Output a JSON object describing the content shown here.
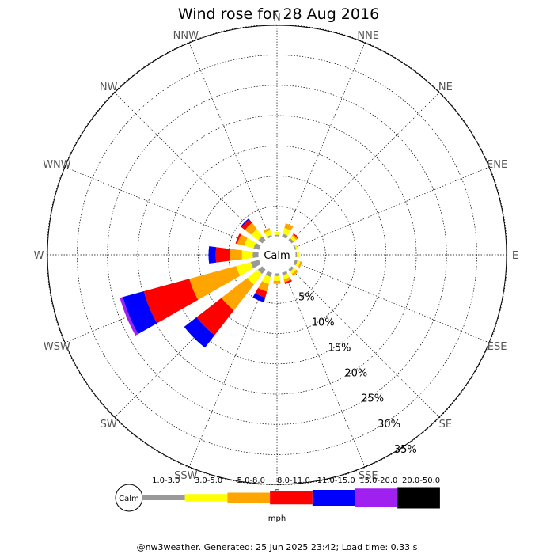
{
  "chart_data": {
    "type": "wind-rose",
    "title": "Wind rose for 28 Aug 2016",
    "directions": [
      "N",
      "NNE",
      "NE",
      "ENE",
      "E",
      "ESE",
      "SE",
      "SSE",
      "S",
      "SSW",
      "SW",
      "WSW",
      "W",
      "WNW",
      "NW",
      "NNW"
    ],
    "ring_labels": [
      "5%",
      "10%",
      "15%",
      "20%",
      "25%",
      "30%",
      "35%"
    ],
    "ring_values": [
      5,
      10,
      15,
      20,
      25,
      30,
      35
    ],
    "calm_label": "Calm",
    "speed_unit": "mph",
    "speed_bins": [
      {
        "label": "1.0-3.0",
        "color": "#999999"
      },
      {
        "label": "3.0-5.0",
        "color": "#ffff00"
      },
      {
        "label": "5.0-8.0",
        "color": "#ffa500"
      },
      {
        "label": "8.0-11.0",
        "color": "#ff0000"
      },
      {
        "label": "11.0-15.0",
        "color": "#0000ff"
      },
      {
        "label": "15.0-20.0",
        "color": "#a020f0"
      },
      {
        "label": "20.0-50.0",
        "color": "#000000"
      }
    ],
    "series": [
      {
        "direction": "N",
        "values": [
          0.3,
          0.5,
          0,
          0,
          0,
          0,
          0
        ]
      },
      {
        "direction": "NNE",
        "values": [
          0.6,
          1.0,
          0.8,
          0,
          0,
          0,
          0
        ]
      },
      {
        "direction": "NE",
        "values": [
          0.5,
          0.5,
          0.3,
          0.2,
          0,
          0,
          0
        ]
      },
      {
        "direction": "ENE",
        "values": [
          0.3,
          0.3,
          0,
          0,
          0,
          0,
          0
        ]
      },
      {
        "direction": "E",
        "values": [
          0.3,
          0.4,
          0,
          0,
          0,
          0,
          0
        ]
      },
      {
        "direction": "ESE",
        "values": [
          0.5,
          0.5,
          0.3,
          0,
          0,
          0,
          0
        ]
      },
      {
        "direction": "SE",
        "values": [
          0.5,
          0.5,
          0.4,
          0,
          0,
          0,
          0
        ]
      },
      {
        "direction": "SSE",
        "values": [
          0.5,
          0.7,
          0.5,
          0.3,
          0,
          0,
          0
        ]
      },
      {
        "direction": "S",
        "values": [
          0.5,
          0.8,
          0.5,
          0,
          0,
          0,
          0
        ]
      },
      {
        "direction": "SSW",
        "values": [
          0.8,
          1.2,
          1.3,
          1.0,
          0.8,
          0,
          0
        ]
      },
      {
        "direction": "SW",
        "values": [
          1.0,
          2.2,
          5.4,
          5.2,
          2.6,
          0,
          0
        ]
      },
      {
        "direction": "WSW",
        "values": [
          1.5,
          2.5,
          8.0,
          7.8,
          3.6,
          0.5,
          0
        ]
      },
      {
        "direction": "W",
        "values": [
          1.0,
          1.8,
          2.0,
          2.3,
          1.2,
          0,
          0
        ]
      },
      {
        "direction": "WNW",
        "values": [
          1.0,
          1.6,
          1.2,
          0.3,
          0,
          0,
          0
        ]
      },
      {
        "direction": "NW",
        "values": [
          0.9,
          1.5,
          1.3,
          0.7,
          0.2,
          0,
          0
        ]
      },
      {
        "direction": "NNW",
        "values": [
          0.4,
          0.8,
          0.4,
          0,
          0,
          0,
          0
        ]
      }
    ]
  },
  "footer": "@nw3weather. Generated: 25 Jun 2025 23:42; Load time: 0.33 s"
}
